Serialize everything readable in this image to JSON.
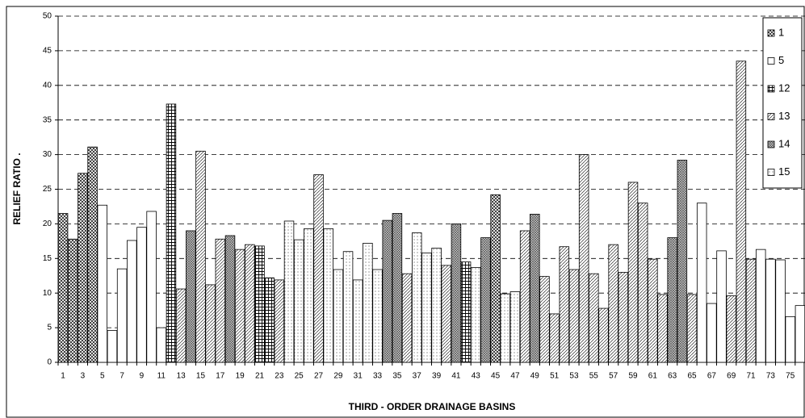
{
  "chart_data": {
    "type": "bar",
    "y_label": "RELIEF RATIO .",
    "x_label": "THIRD - ORDER DRAINAGE BASINS",
    "categories": [
      1,
      null,
      3,
      null,
      5,
      null,
      7,
      null,
      9,
      null,
      11,
      null,
      13,
      null,
      15,
      null,
      17,
      null,
      19,
      null,
      21,
      null,
      23,
      null,
      25,
      null,
      27,
      null,
      29,
      null,
      31,
      null,
      33,
      null,
      35,
      null,
      37,
      null,
      39,
      null,
      41,
      null,
      43,
      null,
      45,
      null,
      47,
      null,
      49,
      null,
      51,
      null,
      53,
      null,
      55,
      null,
      57,
      null,
      59,
      null,
      61,
      null,
      63,
      null,
      65,
      null,
      67,
      null,
      69,
      null,
      71,
      null,
      73,
      null,
      75,
      null
    ],
    "ylim": [
      0,
      50
    ],
    "yticks": [
      0,
      5,
      10,
      15,
      20,
      25,
      30,
      35,
      40,
      45,
      50
    ],
    "grid": true,
    "legend": "right",
    "series": [
      {
        "name": "1",
        "color": "#000000",
        "pattern": "crosshatch",
        "values": [
          21.5,
          17.8,
          27.3,
          31.1,
          null,
          null,
          null,
          null,
          null,
          null,
          null,
          null,
          null,
          null,
          null,
          null,
          null,
          null,
          null,
          null,
          null,
          null,
          null,
          null,
          null,
          null,
          null,
          null,
          null,
          null,
          null,
          null,
          null,
          null,
          null,
          null,
          null,
          null,
          null,
          null,
          null,
          null,
          null,
          null,
          24.2,
          null,
          null,
          null,
          null,
          null,
          null,
          null,
          null,
          null,
          null,
          null,
          null,
          null,
          null,
          null,
          null,
          null,
          null,
          null,
          null,
          null,
          null,
          null,
          null,
          null,
          null,
          null,
          null,
          null,
          null,
          null
        ]
      },
      {
        "name": "5",
        "color": "#000000",
        "pattern": "blank",
        "values": [
          null,
          null,
          null,
          null,
          22.7,
          4.6,
          13.5,
          17.6,
          19.5,
          21.8,
          5.0,
          null,
          null,
          null,
          null,
          null,
          null,
          null,
          null,
          null,
          null,
          null,
          null,
          null,
          null,
          null,
          null,
          null,
          null,
          null,
          null,
          null,
          null,
          null,
          null,
          null,
          null,
          null,
          null,
          null,
          null,
          null,
          null,
          null,
          null,
          null,
          null,
          null,
          null,
          null,
          null,
          null,
          null,
          null,
          null,
          null,
          null,
          null,
          null,
          null,
          null,
          null,
          null,
          null,
          null,
          23.0,
          8.5,
          16.1,
          null,
          null,
          null,
          16.3,
          14.9,
          14.8,
          6.6,
          8.2
        ]
      },
      {
        "name": "12",
        "color": "#000000",
        "pattern": "grid",
        "values": [
          null,
          null,
          null,
          null,
          null,
          null,
          null,
          null,
          null,
          null,
          null,
          37.3,
          null,
          null,
          null,
          null,
          null,
          null,
          null,
          null,
          16.8,
          12.2,
          null,
          null,
          null,
          null,
          null,
          null,
          null,
          null,
          null,
          null,
          null,
          null,
          null,
          null,
          null,
          null,
          null,
          null,
          null,
          14.5,
          null,
          null,
          null,
          null,
          null,
          null,
          null,
          null,
          null,
          null,
          null,
          null,
          null,
          null,
          null,
          null,
          null,
          null,
          null,
          null,
          null,
          null,
          null,
          null,
          null,
          null,
          null,
          null,
          null,
          null,
          null,
          null,
          null,
          null
        ]
      },
      {
        "name": "13",
        "color": "#000000",
        "pattern": "wave",
        "values": [
          null,
          null,
          null,
          null,
          null,
          null,
          null,
          null,
          null,
          null,
          null,
          null,
          10.6,
          null,
          30.5,
          11.2,
          17.8,
          null,
          16.3,
          17.0,
          null,
          null,
          11.9,
          null,
          null,
          null,
          27.1,
          null,
          null,
          null,
          null,
          null,
          null,
          null,
          null,
          12.8,
          null,
          null,
          null,
          14.0,
          null,
          null,
          null,
          null,
          null,
          null,
          null,
          19.0,
          null,
          12.4,
          7.0,
          16.7,
          13.4,
          30.0,
          12.8,
          7.8,
          17.0,
          13.0,
          26.0,
          23.0,
          14.9,
          9.8,
          null,
          null,
          9.8,
          null,
          null,
          null,
          9.6,
          43.5,
          14.9,
          null,
          null,
          null,
          null,
          null
        ]
      },
      {
        "name": "14",
        "color": "#000000",
        "pattern": "dense",
        "values": [
          null,
          null,
          null,
          null,
          null,
          null,
          null,
          null,
          null,
          null,
          null,
          null,
          null,
          19.0,
          null,
          null,
          null,
          18.3,
          null,
          null,
          null,
          null,
          null,
          null,
          null,
          null,
          null,
          null,
          null,
          null,
          null,
          null,
          null,
          20.5,
          21.5,
          null,
          null,
          null,
          null,
          null,
          20.0,
          null,
          null,
          18.0,
          null,
          null,
          null,
          null,
          21.4,
          null,
          null,
          null,
          null,
          null,
          null,
          null,
          null,
          null,
          null,
          null,
          null,
          null,
          18.0,
          29.2,
          null,
          null,
          null,
          null,
          null,
          null,
          null,
          null,
          null,
          null,
          null,
          null
        ]
      },
      {
        "name": "15",
        "color": "#000000",
        "pattern": "dots",
        "values": [
          null,
          null,
          null,
          null,
          null,
          null,
          null,
          null,
          null,
          null,
          null,
          null,
          null,
          null,
          null,
          null,
          null,
          null,
          null,
          null,
          null,
          null,
          null,
          20.4,
          17.7,
          19.3,
          null,
          19.3,
          13.4,
          16.0,
          11.9,
          17.2,
          13.4,
          null,
          null,
          null,
          18.7,
          15.8,
          16.5,
          null,
          null,
          null,
          13.7,
          null,
          null,
          9.9,
          10.2,
          null,
          null,
          null,
          null,
          null,
          null,
          null,
          null,
          null,
          null,
          null,
          null,
          null,
          null,
          null,
          null,
          null,
          null,
          null,
          null,
          null,
          null,
          null,
          null,
          null,
          null,
          null,
          null,
          null
        ]
      }
    ]
  }
}
